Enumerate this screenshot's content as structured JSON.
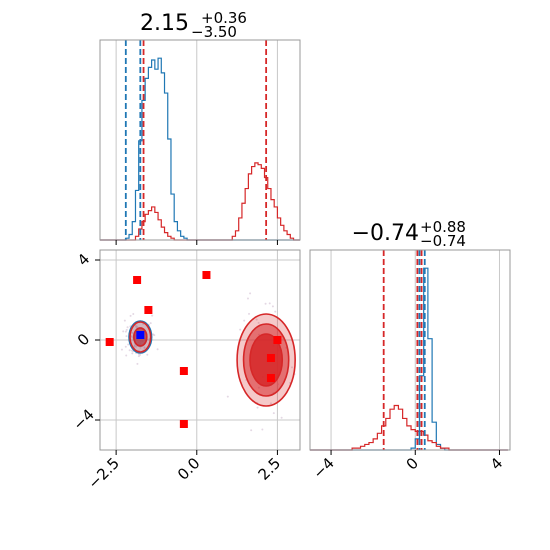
{
  "chart_data": [
    {
      "type": "histogram",
      "panel": "marginal-param1",
      "title": {
        "value": "2.15",
        "upper": "+0.36",
        "lower": "−3.50"
      },
      "xlim": [
        -3.0,
        3.2
      ],
      "bin_edges": [
        -3.0,
        -2.9,
        -2.8,
        -2.7,
        -2.6,
        -2.5,
        -2.4,
        -2.3,
        -2.2,
        -2.1,
        -2.0,
        -1.9,
        -1.8,
        -1.7,
        -1.6,
        -1.5,
        -1.4,
        -1.3,
        -1.2,
        -1.1,
        -1.0,
        -0.9,
        -0.8,
        -0.7,
        -0.6,
        -0.5,
        -0.4,
        -0.3,
        -0.2,
        -0.1,
        0.0,
        0.1,
        0.2,
        0.3,
        0.4,
        0.5,
        0.6,
        0.7,
        0.8,
        0.9,
        1.0,
        1.1,
        1.2,
        1.3,
        1.4,
        1.5,
        1.6,
        1.7,
        1.8,
        1.9,
        2.0,
        2.1,
        2.2,
        2.3,
        2.4,
        2.5,
        2.6,
        2.7,
        2.8,
        2.9,
        3.0,
        3.1,
        3.2
      ],
      "series": [
        {
          "color": "#1f77b4",
          "values": [
            0,
            0,
            0,
            0,
            0,
            0,
            0,
            0,
            1,
            3,
            10,
            27,
            54,
            76,
            88,
            94,
            98,
            93,
            99,
            91,
            80,
            55,
            25,
            10,
            5,
            2,
            1,
            0,
            0,
            0,
            0,
            0,
            0,
            0,
            0,
            0,
            0,
            0,
            0,
            0,
            0,
            0,
            0,
            0,
            0,
            0,
            0,
            0,
            0,
            0,
            0,
            0,
            0,
            0,
            0,
            0,
            0,
            0,
            0,
            0,
            0,
            0
          ]
        },
        {
          "color": "#d62728",
          "values": [
            0,
            0,
            0,
            0,
            0,
            0,
            0,
            0,
            0,
            0,
            0,
            2,
            6,
            10,
            14,
            16,
            18,
            15,
            11,
            7,
            4,
            2,
            1,
            0,
            0,
            0,
            0,
            0,
            0,
            0,
            0,
            0,
            0,
            0,
            0,
            0,
            0,
            0,
            0,
            0,
            0,
            2,
            5,
            12,
            20,
            28,
            36,
            40,
            42,
            41,
            39,
            34,
            28,
            22,
            18,
            12,
            8,
            5,
            3,
            1,
            0,
            0
          ]
        }
      ],
      "quantile_lines": [
        {
          "color": "#1f77b4",
          "x": [
            -2.2,
            -1.75
          ]
        },
        {
          "color": "#d62728",
          "x": [
            -1.65,
            2.15
          ]
        }
      ]
    },
    {
      "type": "histogram",
      "panel": "marginal-param2",
      "title": {
        "value": "−0.74",
        "upper": "+0.88",
        "lower": "−0.74"
      },
      "xlim": [
        -5.0,
        4.5
      ],
      "xticks": [
        "−4",
        "0",
        "4"
      ],
      "xtick_values": [
        -4,
        0,
        4
      ],
      "bin_edges": [
        -5.0,
        -4.8,
        -4.6,
        -4.4,
        -4.2,
        -4.0,
        -3.8,
        -3.6,
        -3.4,
        -3.2,
        -3.0,
        -2.8,
        -2.6,
        -2.4,
        -2.2,
        -2.0,
        -1.8,
        -1.6,
        -1.4,
        -1.2,
        -1.0,
        -0.8,
        -0.6,
        -0.4,
        -0.2,
        0.0,
        0.2,
        0.4,
        0.6,
        0.8,
        1.0,
        1.2,
        1.4,
        1.6,
        1.8,
        2.0,
        2.2,
        2.4,
        2.6,
        2.8,
        3.0,
        3.2,
        3.4,
        3.6,
        3.8,
        4.0,
        4.2,
        4.4
      ],
      "series": [
        {
          "color": "#1f77b4",
          "values": [
            0,
            0,
            0,
            0,
            0,
            0,
            0,
            0,
            0,
            0,
            0,
            0,
            0,
            0,
            0,
            0,
            0,
            0,
            0,
            0,
            0,
            0,
            0,
            0,
            1,
            6,
            40,
            98,
            60,
            15,
            3,
            1,
            0,
            0,
            0,
            0,
            0,
            0,
            0,
            0,
            0,
            0,
            0,
            0,
            0,
            0,
            0
          ]
        },
        {
          "color": "#d62728",
          "values": [
            0,
            0,
            0,
            0,
            0,
            0,
            0,
            0,
            0,
            0,
            1,
            1,
            2,
            3,
            4,
            6,
            9,
            13,
            17,
            22,
            24,
            22,
            17,
            13,
            11,
            10,
            10,
            8,
            5,
            4,
            2,
            1,
            1,
            0,
            0,
            0,
            0,
            0,
            0,
            0,
            0,
            0,
            0,
            0,
            0,
            0,
            0
          ]
        }
      ],
      "quantile_lines": [
        {
          "color": "#d62728",
          "x": [
            -1.5,
            0.1,
            0.3
          ]
        },
        {
          "color": "#1f77b4",
          "x": [
            0.2,
            0.45
          ]
        }
      ]
    },
    {
      "type": "scatter",
      "panel": "joint-param1-param2",
      "xlim": [
        -3.0,
        3.2
      ],
      "ylim": [
        -5.5,
        4.5
      ],
      "xticks": [
        "−2.5",
        "0.0",
        "2.5"
      ],
      "xtick_values": [
        -2.5,
        0.0,
        2.5
      ],
      "yticks": [
        "−4",
        "0",
        "4"
      ],
      "ytick_values": [
        -4,
        0,
        4
      ],
      "markers": {
        "color": "#ff0000",
        "points": [
          [
            -2.7,
            -0.1
          ],
          [
            -1.85,
            3.0
          ],
          [
            -1.5,
            1.5
          ],
          [
            0.3,
            3.25
          ],
          [
            -0.4,
            -1.55
          ],
          [
            -0.4,
            -4.2
          ],
          [
            2.3,
            -0.9
          ],
          [
            2.5,
            0.0
          ],
          [
            2.3,
            -1.9
          ]
        ]
      },
      "highlight_point": {
        "color": "#0000ff",
        "point": [
          -1.75,
          0.25
        ]
      },
      "contours": [
        {
          "color": "#1f77b4",
          "center": [
            -1.75,
            0.15
          ],
          "levels": [
            [
              0.2,
              0.45
            ],
            [
              0.35,
              0.8
            ]
          ]
        },
        {
          "color": "#d62728",
          "center": [
            -1.75,
            0.15
          ],
          "levels": [
            [
              0.2,
              0.45
            ],
            [
              0.32,
              0.75
            ]
          ]
        },
        {
          "color": "#d62728",
          "center": [
            2.15,
            -1.0
          ],
          "levels": [
            [
              0.5,
              1.3
            ],
            [
              0.7,
              1.8
            ],
            [
              0.9,
              2.3
            ]
          ]
        }
      ]
    }
  ]
}
